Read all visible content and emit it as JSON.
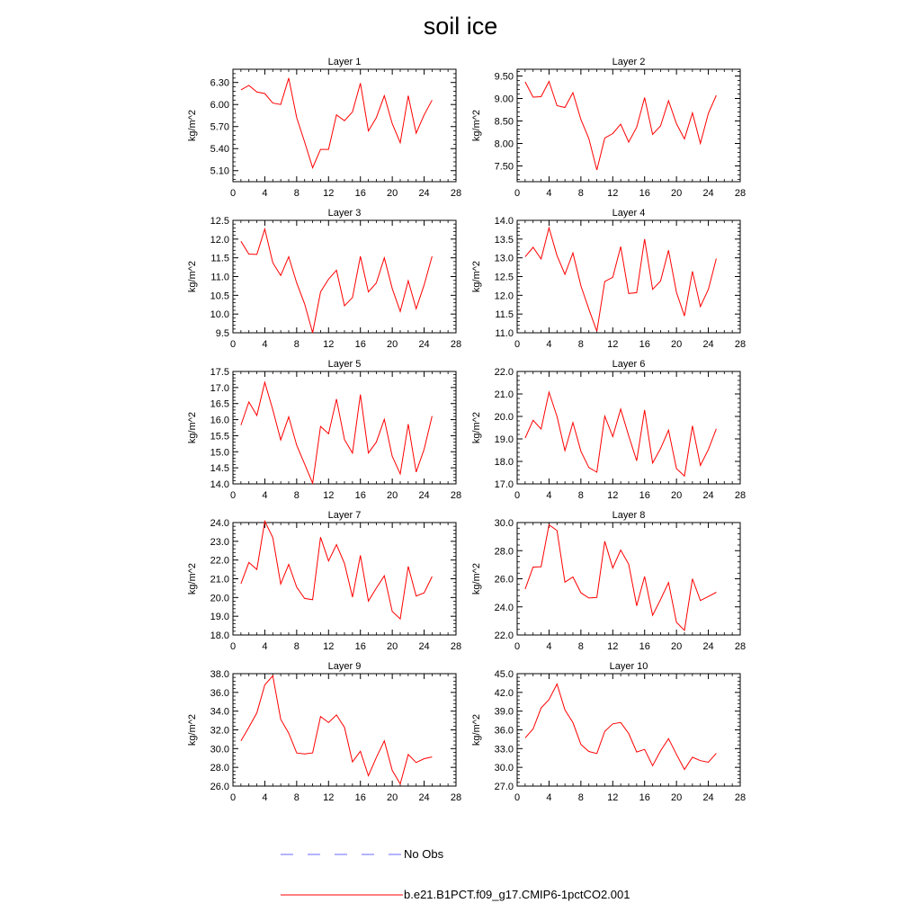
{
  "title": "soil ice",
  "legend": [
    {
      "label": "No Obs",
      "color": "#6a6aff",
      "dash": true
    },
    {
      "label": "b.e21.B1PCT.f09_g17.CMIP6-1pctCO2.001",
      "color": "#ff0000",
      "dash": false
    }
  ],
  "chart_data": [
    {
      "type": "line",
      "title": "Layer 1",
      "ylabel": "kg/m^2",
      "xlim": [
        0,
        28
      ],
      "ylim": [
        4.95,
        6.48
      ],
      "xticks": [
        0,
        4,
        8,
        12,
        16,
        20,
        24,
        28
      ],
      "yticks": [
        5.1,
        5.4,
        5.7,
        6.0,
        6.3
      ],
      "ytick_labels": [
        "5.10",
        "5.40",
        "5.70",
        "6.00",
        "6.30"
      ],
      "series": [
        {
          "color": "#ff0000",
          "x": [
            1,
            2,
            3,
            4,
            5,
            6,
            7,
            8,
            9,
            10,
            11,
            12,
            13,
            14,
            15,
            16,
            17,
            18,
            19,
            20,
            21,
            22,
            23,
            24,
            25
          ],
          "values": [
            6.2,
            6.26,
            6.17,
            6.15,
            6.02,
            6.0,
            6.36,
            5.82,
            5.49,
            5.14,
            5.39,
            5.39,
            5.86,
            5.78,
            5.9,
            6.29,
            5.64,
            5.82,
            6.12,
            5.74,
            5.48,
            6.12,
            5.61,
            5.86,
            6.06
          ]
        }
      ]
    },
    {
      "type": "line",
      "title": "Layer 2",
      "ylabel": "kg/m^2",
      "xlim": [
        0,
        28
      ],
      "ylim": [
        7.15,
        9.65
      ],
      "xticks": [
        0,
        4,
        8,
        12,
        16,
        20,
        24,
        28
      ],
      "yticks": [
        7.5,
        8.0,
        8.5,
        9.0,
        9.5
      ],
      "ytick_labels": [
        "7.50",
        "8.00",
        "8.50",
        "9.00",
        "9.50"
      ],
      "series": [
        {
          "color": "#ff0000",
          "x": [
            1,
            2,
            3,
            4,
            5,
            6,
            7,
            8,
            9,
            10,
            11,
            12,
            13,
            14,
            15,
            16,
            17,
            18,
            19,
            20,
            21,
            22,
            23,
            24,
            25
          ],
          "values": [
            9.37,
            9.03,
            9.04,
            9.38,
            8.84,
            8.8,
            9.13,
            8.53,
            8.11,
            7.41,
            8.12,
            8.22,
            8.43,
            8.03,
            8.36,
            9.02,
            8.2,
            8.39,
            8.95,
            8.44,
            8.1,
            8.68,
            8.0,
            8.67,
            9.07
          ]
        }
      ]
    },
    {
      "type": "line",
      "title": "Layer 3",
      "ylabel": "kg/m^2",
      "xlim": [
        0,
        28
      ],
      "ylim": [
        9.5,
        12.5
      ],
      "xticks": [
        0,
        4,
        8,
        12,
        16,
        20,
        24,
        28
      ],
      "yticks": [
        9.5,
        10.0,
        10.5,
        11.0,
        11.5,
        12.0,
        12.5
      ],
      "ytick_labels": [
        "9.5",
        "10.0",
        "10.5",
        "11.0",
        "11.5",
        "12.0",
        "12.5"
      ],
      "series": [
        {
          "color": "#ff0000",
          "x": [
            1,
            2,
            3,
            4,
            5,
            6,
            7,
            8,
            9,
            10,
            11,
            12,
            13,
            14,
            15,
            16,
            17,
            18,
            19,
            20,
            21,
            22,
            23,
            24,
            25
          ],
          "values": [
            11.94,
            11.6,
            11.59,
            12.27,
            11.37,
            11.03,
            11.53,
            10.83,
            10.27,
            9.5,
            10.59,
            10.93,
            11.17,
            10.22,
            10.44,
            11.54,
            10.59,
            10.83,
            11.5,
            10.68,
            10.07,
            10.89,
            10.14,
            10.78,
            11.54
          ]
        }
      ]
    },
    {
      "type": "line",
      "title": "Layer 4",
      "ylabel": "kg/m^2",
      "xlim": [
        0,
        28
      ],
      "ylim": [
        11.0,
        14.0
      ],
      "xticks": [
        0,
        4,
        8,
        12,
        16,
        20,
        24,
        28
      ],
      "yticks": [
        11.0,
        11.5,
        12.0,
        12.5,
        13.0,
        13.5,
        14.0
      ],
      "ytick_labels": [
        "11.0",
        "11.5",
        "12.0",
        "12.5",
        "13.0",
        "13.5",
        "14.0"
      ],
      "series": [
        {
          "color": "#ff0000",
          "x": [
            1,
            2,
            3,
            4,
            5,
            6,
            7,
            8,
            9,
            10,
            11,
            12,
            13,
            14,
            15,
            16,
            17,
            18,
            19,
            20,
            21,
            22,
            23,
            24,
            25
          ],
          "values": [
            13.03,
            13.28,
            12.97,
            13.8,
            13.06,
            12.56,
            13.13,
            12.25,
            11.63,
            11.04,
            12.37,
            12.48,
            13.3,
            12.05,
            12.07,
            13.5,
            12.16,
            12.38,
            13.2,
            12.08,
            11.45,
            12.64,
            11.7,
            12.16,
            12.98
          ]
        }
      ]
    },
    {
      "type": "line",
      "title": "Layer 5",
      "ylabel": "kg/m^2",
      "xlim": [
        0,
        28
      ],
      "ylim": [
        14.0,
        17.5
      ],
      "xticks": [
        0,
        4,
        8,
        12,
        16,
        20,
        24,
        28
      ],
      "yticks": [
        14.0,
        14.5,
        15.0,
        15.5,
        16.0,
        16.5,
        17.0,
        17.5
      ],
      "ytick_labels": [
        "14.0",
        "14.5",
        "15.0",
        "15.5",
        "16.0",
        "16.5",
        "17.0",
        "17.5"
      ],
      "series": [
        {
          "color": "#ff0000",
          "x": [
            1,
            2,
            3,
            4,
            5,
            6,
            7,
            8,
            9,
            10,
            11,
            12,
            13,
            14,
            15,
            16,
            17,
            18,
            19,
            20,
            21,
            22,
            23,
            24,
            25
          ],
          "values": [
            15.83,
            16.55,
            16.13,
            17.16,
            16.31,
            15.37,
            16.09,
            15.2,
            14.62,
            14.02,
            15.79,
            15.56,
            16.64,
            15.38,
            14.96,
            16.78,
            14.96,
            15.3,
            16.01,
            14.86,
            14.31,
            15.86,
            14.37,
            15.08,
            16.11
          ]
        }
      ]
    },
    {
      "type": "line",
      "title": "Layer 6",
      "ylabel": "kg/m^2",
      "xlim": [
        0,
        28
      ],
      "ylim": [
        17.0,
        22.0
      ],
      "xticks": [
        0,
        4,
        8,
        12,
        16,
        20,
        24,
        28
      ],
      "yticks": [
        17.0,
        18.0,
        19.0,
        20.0,
        21.0,
        22.0
      ],
      "ytick_labels": [
        "17.0",
        "18.0",
        "19.0",
        "20.0",
        "21.0",
        "22.0"
      ],
      "series": [
        {
          "color": "#ff0000",
          "x": [
            1,
            2,
            3,
            4,
            5,
            6,
            7,
            8,
            9,
            10,
            11,
            12,
            13,
            14,
            15,
            16,
            17,
            18,
            19,
            20,
            21,
            22,
            23,
            24,
            25
          ],
          "values": [
            19.04,
            19.83,
            19.44,
            21.08,
            20.0,
            18.48,
            19.73,
            18.45,
            17.73,
            17.52,
            20.01,
            19.1,
            20.33,
            19.14,
            18.03,
            20.29,
            17.93,
            18.57,
            19.39,
            17.68,
            17.35,
            19.58,
            17.82,
            18.53,
            19.45
          ]
        }
      ]
    },
    {
      "type": "line",
      "title": "Layer 7",
      "ylabel": "kg/m^2",
      "xlim": [
        0,
        28
      ],
      "ylim": [
        18.0,
        24.0
      ],
      "xticks": [
        0,
        4,
        8,
        12,
        16,
        20,
        24,
        28
      ],
      "yticks": [
        18.0,
        19.0,
        20.0,
        21.0,
        22.0,
        23.0,
        24.0
      ],
      "ytick_labels": [
        "18.0",
        "19.0",
        "20.0",
        "21.0",
        "22.0",
        "23.0",
        "24.0"
      ],
      "series": [
        {
          "color": "#ff0000",
          "x": [
            1,
            2,
            3,
            4,
            5,
            6,
            7,
            8,
            9,
            10,
            11,
            12,
            13,
            14,
            15,
            16,
            17,
            18,
            19,
            20,
            21,
            22,
            23,
            24,
            25
          ],
          "values": [
            20.74,
            21.87,
            21.5,
            24.07,
            23.2,
            20.72,
            21.77,
            20.55,
            19.95,
            19.88,
            23.22,
            21.95,
            22.82,
            21.82,
            20.02,
            22.25,
            19.81,
            20.5,
            21.16,
            19.26,
            18.86,
            21.66,
            20.08,
            20.25,
            21.12
          ]
        }
      ]
    },
    {
      "type": "line",
      "title": "Layer 8",
      "ylabel": "kg/m^2",
      "xlim": [
        0,
        28
      ],
      "ylim": [
        22.0,
        30.0
      ],
      "xticks": [
        0,
        4,
        8,
        12,
        16,
        20,
        24,
        28
      ],
      "yticks": [
        22.0,
        24.0,
        26.0,
        28.0,
        30.0
      ],
      "ytick_labels": [
        "22.0",
        "24.0",
        "26.0",
        "28.0",
        "30.0"
      ],
      "series": [
        {
          "color": "#ff0000",
          "x": [
            1,
            2,
            3,
            4,
            5,
            6,
            7,
            8,
            9,
            10,
            11,
            12,
            13,
            14,
            15,
            16,
            17,
            18,
            19,
            20,
            21,
            22,
            23,
            24,
            25
          ],
          "values": [
            25.27,
            26.83,
            26.86,
            29.84,
            29.43,
            25.76,
            26.13,
            25.0,
            24.63,
            24.67,
            28.67,
            26.77,
            28.04,
            27.04,
            24.08,
            26.16,
            23.4,
            24.52,
            25.73,
            22.9,
            22.33,
            26.0,
            24.45,
            24.74,
            25.04
          ]
        }
      ]
    },
    {
      "type": "line",
      "title": "Layer 9",
      "ylabel": "kg/m^2",
      "xlim": [
        0,
        28
      ],
      "ylim": [
        26.0,
        38.0
      ],
      "xticks": [
        0,
        4,
        8,
        12,
        16,
        20,
        24,
        28
      ],
      "yticks": [
        26.0,
        28.0,
        30.0,
        32.0,
        34.0,
        36.0,
        38.0
      ],
      "ytick_labels": [
        "26.0",
        "28.0",
        "30.0",
        "32.0",
        "34.0",
        "36.0",
        "38.0"
      ],
      "series": [
        {
          "color": "#ff0000",
          "x": [
            1,
            2,
            3,
            4,
            5,
            6,
            7,
            8,
            9,
            10,
            11,
            12,
            13,
            14,
            15,
            16,
            17,
            18,
            19,
            20,
            21,
            22,
            23,
            24,
            25
          ],
          "values": [
            30.83,
            32.28,
            33.82,
            36.8,
            37.77,
            33.13,
            31.65,
            29.53,
            29.43,
            29.54,
            33.43,
            32.78,
            33.59,
            32.27,
            28.58,
            29.72,
            27.1,
            29.04,
            30.83,
            27.68,
            26.23,
            29.37,
            28.52,
            28.93,
            29.11
          ]
        }
      ]
    },
    {
      "type": "line",
      "title": "Layer 10",
      "ylabel": "kg/m^2",
      "xlim": [
        0,
        28
      ],
      "ylim": [
        27.0,
        45.0
      ],
      "xticks": [
        0,
        4,
        8,
        12,
        16,
        20,
        24,
        28
      ],
      "yticks": [
        27.0,
        30.0,
        33.0,
        36.0,
        39.0,
        42.0,
        45.0
      ],
      "ytick_labels": [
        "27.0",
        "30.0",
        "33.0",
        "36.0",
        "39.0",
        "42.0",
        "45.0"
      ],
      "series": [
        {
          "color": "#ff0000",
          "x": [
            1,
            2,
            3,
            4,
            5,
            6,
            7,
            8,
            9,
            10,
            11,
            12,
            13,
            14,
            15,
            16,
            17,
            18,
            19,
            20,
            21,
            22,
            23,
            24,
            25
          ],
          "values": [
            34.72,
            36.14,
            39.5,
            40.85,
            43.35,
            39.19,
            37.16,
            33.67,
            32.55,
            32.22,
            35.77,
            36.96,
            37.18,
            35.43,
            32.46,
            32.87,
            30.27,
            32.63,
            34.61,
            32.08,
            29.67,
            31.62,
            31.08,
            30.82,
            32.24
          ]
        }
      ]
    }
  ]
}
